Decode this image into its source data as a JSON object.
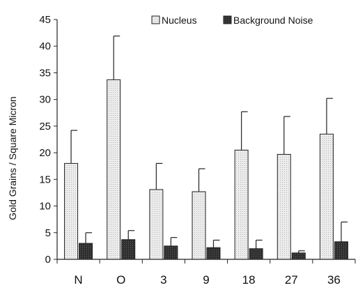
{
  "chart_data": {
    "type": "bar",
    "categories": [
      "N",
      "O",
      "3",
      "9",
      "18",
      "27",
      "36"
    ],
    "series": [
      {
        "name": "Nucleus",
        "color": "#e6e6e6",
        "pattern": "dotted-light",
        "values": [
          18.0,
          33.7,
          13.1,
          12.7,
          20.5,
          19.7,
          23.5
        ],
        "error_upper": [
          24.2,
          41.9,
          18.0,
          17.0,
          27.7,
          26.8,
          30.2
        ]
      },
      {
        "name": "Background Noise",
        "color": "#333333",
        "pattern": "dark-stipple",
        "values": [
          3.0,
          3.7,
          2.5,
          2.2,
          2.0,
          1.2,
          3.3
        ],
        "error_upper": [
          5.0,
          5.4,
          4.1,
          3.6,
          3.6,
          1.6,
          7.0
        ]
      }
    ],
    "title": "",
    "xlabel": "",
    "ylabel": "Gold Grains / Square Micron",
    "ylim": [
      0,
      45
    ],
    "yticks": [
      "0",
      "5",
      "10",
      "15",
      "20",
      "25",
      "30",
      "35",
      "40",
      "45"
    ],
    "grid": false,
    "legend_position": "top-right"
  }
}
